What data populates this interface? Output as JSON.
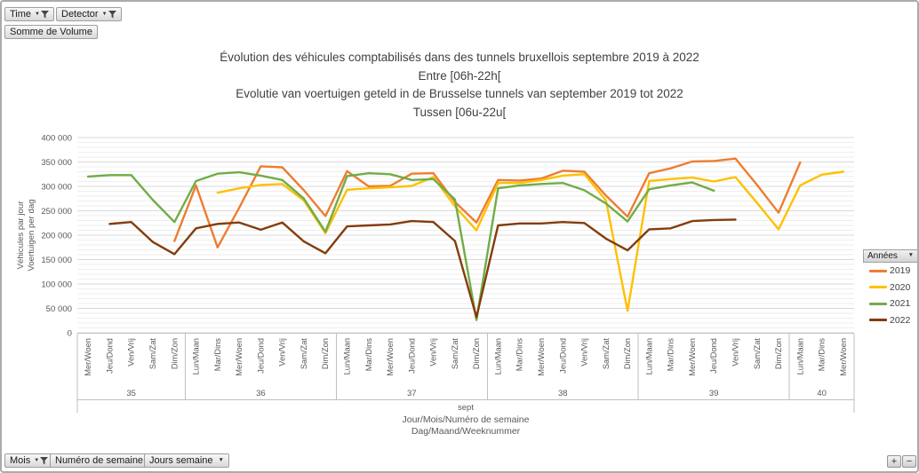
{
  "pivot_fields": {
    "time": {
      "label": "Time"
    },
    "detector": {
      "label": "Detector"
    },
    "value": {
      "label": "Somme de Volume"
    },
    "mois": {
      "label": "Mois"
    },
    "numero_semaine": {
      "label": "Numéro de semaine"
    },
    "jours_semaine": {
      "label": "Jours semaine"
    }
  },
  "zoom_controls": {
    "plus": "+",
    "minus": "−"
  },
  "legend": {
    "header": "Années"
  },
  "chart_data": {
    "type": "line",
    "title_lines": [
      "Évolution des véhicules comptabilisés dans des tunnels bruxellois septembre 2019 à 2022",
      "Entre [06h-22h[",
      "Evolutie van voertuigen geteld in de Brusselse tunnels van september 2019 tot 2022",
      "Tussen [06u-22u["
    ],
    "ylabel_lines": [
      "Véhicules par jour",
      "Voertuigen per dag"
    ],
    "xtitle_lines": [
      "Jour/Mois/Numéro de semaine",
      "Dag/Maand/Weeknummer"
    ],
    "month_label": "sept",
    "ylim": [
      0,
      400000
    ],
    "ytick_step": 50000,
    "yminor_step": 10000,
    "grid": true,
    "legend_position": "right",
    "categories": [
      "Mer/Woen",
      "Jeu/Dond",
      "Ven/Vrij",
      "Sam/Zat",
      "Dim/Zon",
      "Lun/Maan",
      "Mar/Dins",
      "Mer/Woen",
      "Jeu/Dond",
      "Ven/Vrij",
      "Sam/Zat",
      "Dim/Zon",
      "Lun/Maan",
      "Mar/Dins",
      "Mer/Woen",
      "Jeu/Dond",
      "Ven/Vrij",
      "Sam/Zat",
      "Dim/Zon",
      "Lun/Maan",
      "Mar/Dins",
      "Mer/Woen",
      "Jeu/Dond",
      "Ven/Vrij",
      "Sam/Zat",
      "Dim/Zon",
      "Lun/Maan",
      "Mar/Dins",
      "Mer/Woen",
      "Jeu/Dond",
      "Ven/Vrij",
      "Sam/Zat",
      "Dim/Zon",
      "Lun/Maan",
      "Mar/Dins",
      "Mer/Woen"
    ],
    "week_groups": [
      {
        "label": "35",
        "count": 5
      },
      {
        "label": "36",
        "count": 7
      },
      {
        "label": "37",
        "count": 7
      },
      {
        "label": "38",
        "count": 7
      },
      {
        "label": "39",
        "count": 7
      },
      {
        "label": "40",
        "count": 3
      }
    ],
    "series": [
      {
        "name": "2019",
        "color": "#ED7D31",
        "values": [
          null,
          null,
          null,
          null,
          188000,
          302000,
          175000,
          256000,
          341000,
          339000,
          292000,
          239000,
          331000,
          300000,
          301000,
          326000,
          327000,
          268000,
          226000,
          313000,
          312000,
          316000,
          332000,
          330000,
          281000,
          238000,
          327000,
          337000,
          351000,
          352000,
          357000,
          303000,
          246000,
          349000,
          null,
          null
        ]
      },
      {
        "name": "2020",
        "color": "#FFC000",
        "values": [
          null,
          null,
          null,
          null,
          null,
          null,
          287000,
          296000,
          303000,
          305000,
          271000,
          204000,
          293000,
          296000,
          298000,
          301000,
          319000,
          259000,
          210000,
          307000,
          307000,
          313000,
          322000,
          325000,
          271000,
          45000,
          311000,
          315000,
          318000,
          310000,
          319000,
          266000,
          212000,
          302000,
          324000,
          330000
        ]
      },
      {
        "name": "2021",
        "color": "#70AD47",
        "values": [
          320000,
          323000,
          323000,
          272000,
          227000,
          311000,
          326000,
          329000,
          322000,
          313000,
          275000,
          207000,
          321000,
          327000,
          325000,
          313000,
          315000,
          273000,
          26000,
          296000,
          302000,
          305000,
          307000,
          292000,
          265000,
          228000,
          294000,
          302000,
          308000,
          291000,
          null,
          null,
          null,
          null,
          null,
          null
        ]
      },
      {
        "name": "2022",
        "color": "#843C0C",
        "values": [
          null,
          223000,
          227000,
          186000,
          161000,
          214000,
          223000,
          226000,
          211000,
          226000,
          187000,
          163000,
          218000,
          220000,
          222000,
          229000,
          227000,
          188000,
          32000,
          220000,
          224000,
          224000,
          227000,
          225000,
          193000,
          169000,
          212000,
          214000,
          229000,
          231000,
          232000,
          null,
          null,
          null,
          null,
          null
        ]
      }
    ]
  }
}
